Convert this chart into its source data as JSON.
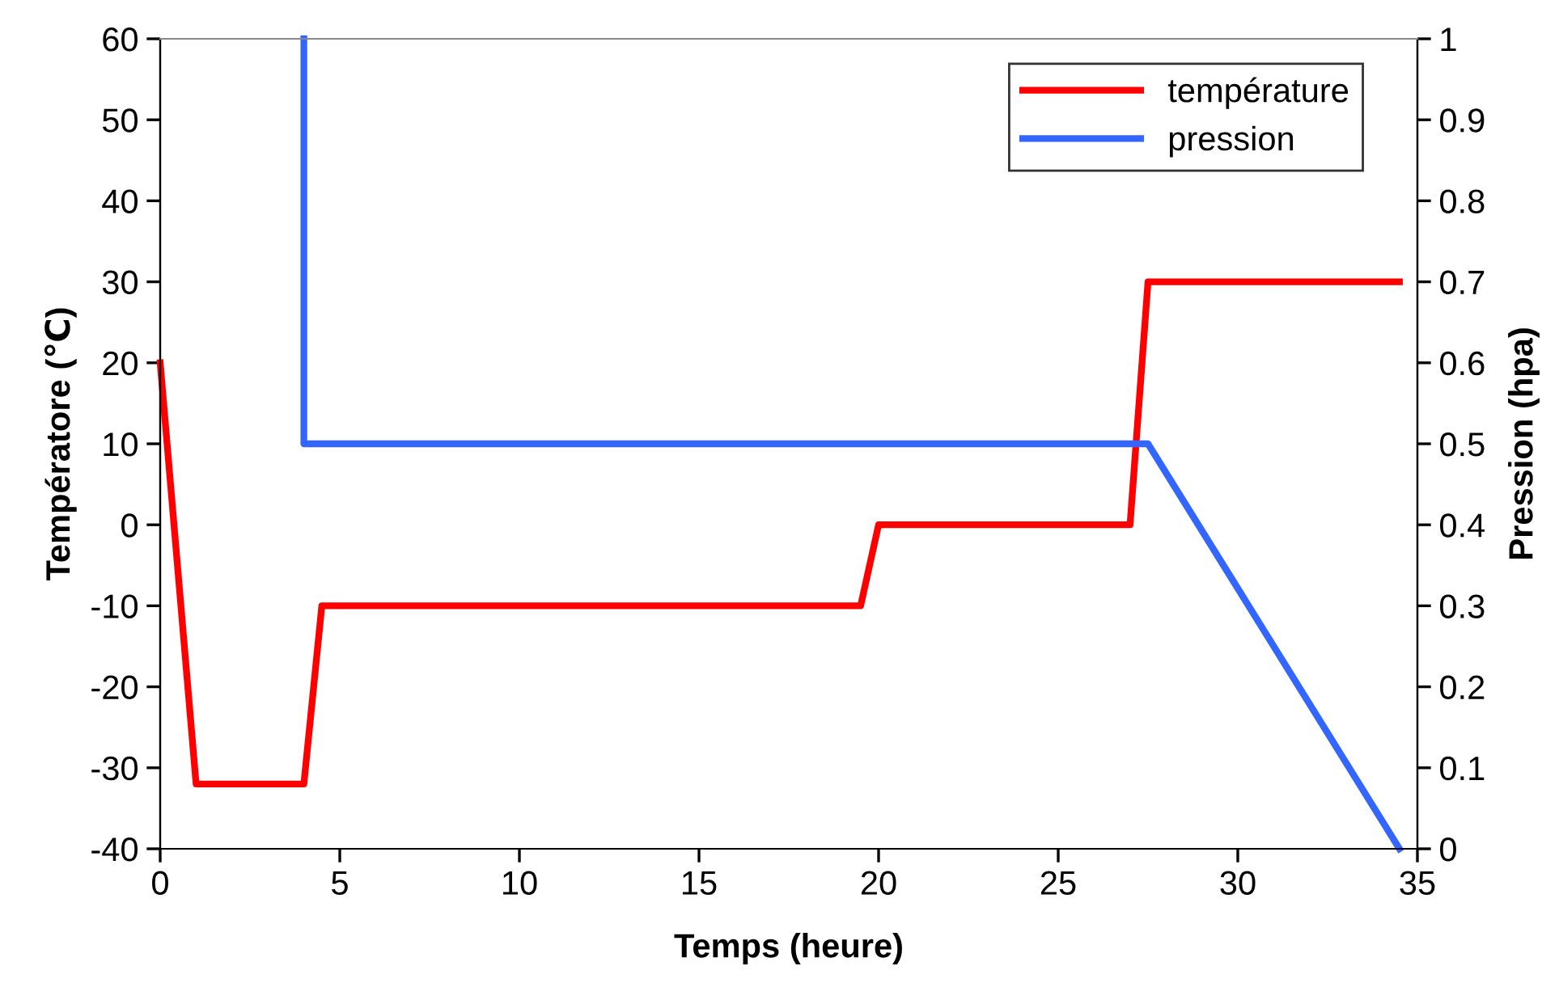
{
  "chart_data": {
    "type": "line",
    "xlabel": "Temps (heure)",
    "ylabel": "Températore (℃)",
    "y2label": "Pression (hpa)",
    "series": [
      {
        "name": "température",
        "color": "#ff0000",
        "x": [
          0,
          1,
          4,
          4.5,
          19.5,
          20,
          27,
          27.5,
          34.5
        ],
        "values": [
          20,
          -32,
          -32,
          -10,
          -10,
          0,
          0,
          30,
          30
        ]
      },
      {
        "name": "pression",
        "color": "#3366ff",
        "axis": "y2",
        "x": [
          4,
          4,
          27.5,
          34.5
        ],
        "values": [
          1,
          0.5,
          0.5,
          0
        ]
      }
    ],
    "xlim": [
      0,
      35
    ],
    "xticks": [
      0,
      5,
      10,
      15,
      20,
      25,
      30,
      35
    ],
    "ylim": [
      -40,
      60
    ],
    "yticks": [
      -40,
      -30,
      -20,
      -10,
      0,
      10,
      20,
      30,
      40,
      50,
      60
    ],
    "y2lim": [
      0,
      1
    ],
    "y2ticks": [
      0,
      0.1,
      0.2,
      0.3,
      0.4,
      0.5,
      0.6,
      0.7,
      0.8,
      0.9,
      1
    ],
    "grid": false,
    "legend": "top right",
    "marker": "none",
    "line_style": "solid"
  }
}
